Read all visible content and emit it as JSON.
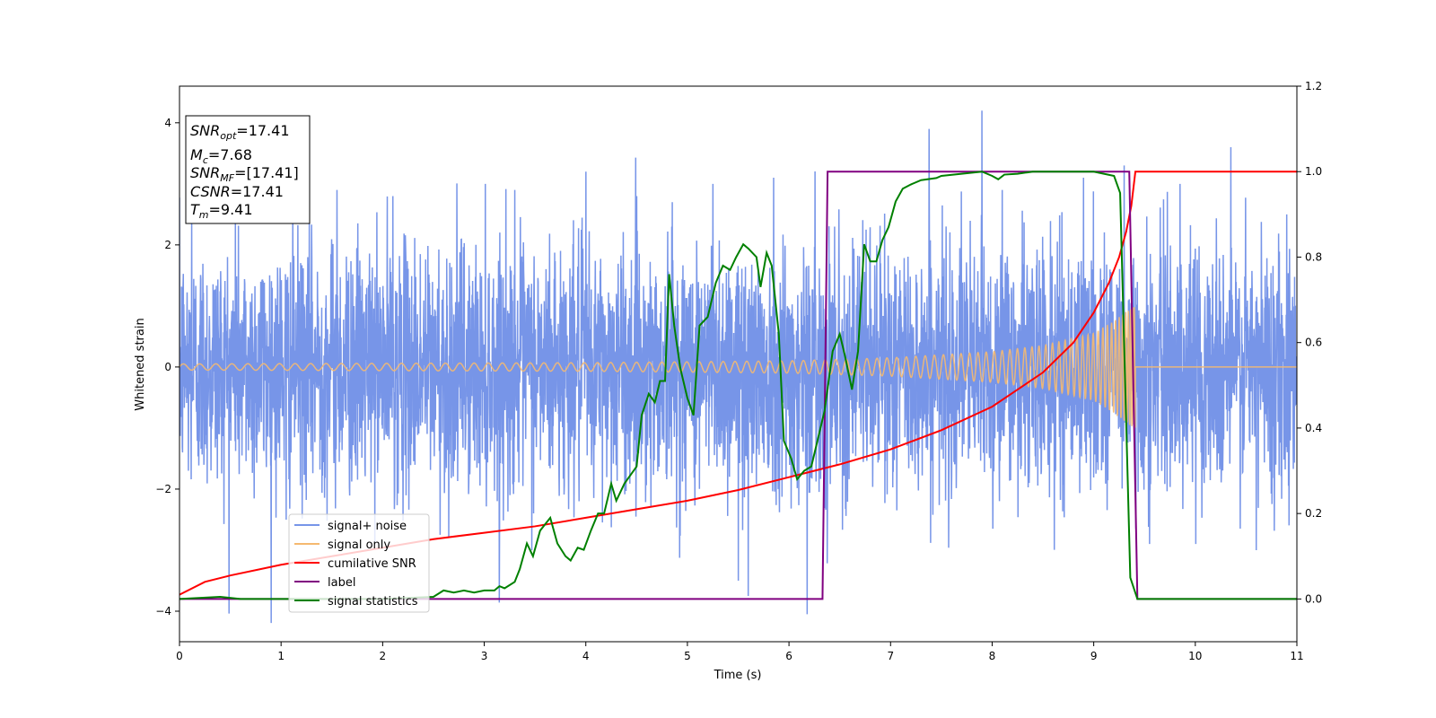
{
  "chart_data": {
    "type": "line",
    "xlabel": "Time (s)",
    "ylabel": "Whitened strain",
    "xlim": [
      0,
      11
    ],
    "ylim": [
      -4.5,
      4.6
    ],
    "y2lim": [
      -0.1,
      1.2
    ],
    "x_ticks": [
      "0",
      "1",
      "2",
      "3",
      "4",
      "5",
      "6",
      "7",
      "8",
      "9",
      "10",
      "11"
    ],
    "y_ticks": [
      "−4",
      "−2",
      "0",
      "2",
      "4"
    ],
    "y2_ticks": [
      "0.0",
      "0.2",
      "0.4",
      "0.6",
      "0.8",
      "1.0",
      "1.2"
    ],
    "grid": false,
    "legend_position": "lower-left",
    "info_box": {
      "snr_opt": {
        "base": "SNR",
        "sub": "opt",
        "value": "=17.41"
      },
      "mc": {
        "base": "M",
        "sub": "c",
        "value": "=7.68"
      },
      "snr_mf": {
        "base": "SNR",
        "sub": "MF",
        "value": "=[17.41]"
      },
      "csnr": {
        "base": "CSNR",
        "sub": "",
        "value": "=17.41"
      },
      "tm": {
        "base": "T",
        "sub": "m",
        "value": "=9.41"
      }
    },
    "series": [
      {
        "name": "signal+ noise",
        "axis": "left",
        "color": "#7795e8",
        "description": "noisy whitened strain, roughly gaussian noise with std ~1 and spikes reaching about 4.2 and -4.1",
        "spikes": [
          [
            0.12,
            2.4
          ],
          [
            0.55,
            2.6
          ],
          [
            1.05,
            -2.5
          ],
          [
            1.55,
            2.9
          ],
          [
            2.1,
            2.8
          ],
          [
            2.65,
            -2.8
          ],
          [
            3.15,
            -2.6
          ],
          [
            3.3,
            2.9
          ],
          [
            4.0,
            3.2
          ],
          [
            4.5,
            2.8
          ],
          [
            4.85,
            2.7
          ],
          [
            5.25,
            3.0
          ],
          [
            5.5,
            -3.5
          ],
          [
            5.6,
            -3.75
          ],
          [
            5.85,
            3.1
          ],
          [
            6.18,
            -4.05
          ],
          [
            6.45,
            2.3
          ],
          [
            7.38,
            3.9
          ],
          [
            7.9,
            4.2
          ],
          [
            8.1,
            2.9
          ],
          [
            8.9,
            3.1
          ],
          [
            9.3,
            3.3
          ],
          [
            9.55,
            -2.9
          ],
          [
            9.85,
            3.0
          ],
          [
            10.35,
            3.6
          ],
          [
            10.6,
            -3.0
          ],
          [
            10.9,
            2.5
          ]
        ]
      },
      {
        "name": "signal only",
        "axis": "left",
        "color": "#f5b970",
        "description": "chirp signal, amplitude growing from 0.05 to 1.0 until merger at 9.41 s, then zero",
        "envelope": [
          [
            0,
            0.05
          ],
          [
            4,
            0.07
          ],
          [
            6,
            0.1
          ],
          [
            7,
            0.15
          ],
          [
            8,
            0.25
          ],
          [
            8.5,
            0.35
          ],
          [
            9,
            0.55
          ],
          [
            9.2,
            0.75
          ],
          [
            9.35,
            0.95
          ],
          [
            9.41,
            1.0
          ]
        ]
      },
      {
        "name": "cumilative SNR",
        "axis": "right",
        "color": "#ff0000",
        "points": [
          [
            0,
            0.01
          ],
          [
            0.25,
            0.04
          ],
          [
            0.5,
            0.055
          ],
          [
            1,
            0.08
          ],
          [
            1.5,
            0.1
          ],
          [
            2,
            0.12
          ],
          [
            2.5,
            0.14
          ],
          [
            3,
            0.155
          ],
          [
            3.5,
            0.17
          ],
          [
            4,
            0.19
          ],
          [
            4.5,
            0.21
          ],
          [
            5,
            0.23
          ],
          [
            5.5,
            0.255
          ],
          [
            6,
            0.285
          ],
          [
            6.5,
            0.315
          ],
          [
            7,
            0.35
          ],
          [
            7.5,
            0.395
          ],
          [
            8,
            0.45
          ],
          [
            8.5,
            0.53
          ],
          [
            8.8,
            0.6
          ],
          [
            9,
            0.67
          ],
          [
            9.15,
            0.74
          ],
          [
            9.25,
            0.8
          ],
          [
            9.32,
            0.86
          ],
          [
            9.37,
            0.92
          ],
          [
            9.41,
            1.0
          ],
          [
            11,
            1.0
          ]
        ]
      },
      {
        "name": "label",
        "axis": "right",
        "color": "#800080",
        "points": [
          [
            0,
            0
          ],
          [
            6.33,
            0
          ],
          [
            6.38,
            1.0
          ],
          [
            9.35,
            1.0
          ],
          [
            9.43,
            0
          ],
          [
            11,
            0
          ]
        ]
      },
      {
        "name": "signal statistics",
        "axis": "right",
        "color": "#008000",
        "points": [
          [
            0,
            0.0
          ],
          [
            0.4,
            0.005
          ],
          [
            0.6,
            0.0
          ],
          [
            1.0,
            0.0
          ],
          [
            2.0,
            0.0
          ],
          [
            2.5,
            0.005
          ],
          [
            2.6,
            0.02
          ],
          [
            2.7,
            0.015
          ],
          [
            2.8,
            0.02
          ],
          [
            2.9,
            0.015
          ],
          [
            3.0,
            0.02
          ],
          [
            3.1,
            0.02
          ],
          [
            3.15,
            0.03
          ],
          [
            3.2,
            0.025
          ],
          [
            3.3,
            0.04
          ],
          [
            3.35,
            0.07
          ],
          [
            3.42,
            0.13
          ],
          [
            3.48,
            0.1
          ],
          [
            3.55,
            0.16
          ],
          [
            3.65,
            0.19
          ],
          [
            3.72,
            0.13
          ],
          [
            3.8,
            0.1
          ],
          [
            3.85,
            0.09
          ],
          [
            3.92,
            0.12
          ],
          [
            3.98,
            0.115
          ],
          [
            4.05,
            0.16
          ],
          [
            4.12,
            0.2
          ],
          [
            4.18,
            0.2
          ],
          [
            4.25,
            0.27
          ],
          [
            4.3,
            0.23
          ],
          [
            4.38,
            0.27
          ],
          [
            4.5,
            0.31
          ],
          [
            4.55,
            0.43
          ],
          [
            4.62,
            0.48
          ],
          [
            4.68,
            0.46
          ],
          [
            4.73,
            0.51
          ],
          [
            4.78,
            0.51
          ],
          [
            4.82,
            0.76
          ],
          [
            4.87,
            0.64
          ],
          [
            4.93,
            0.54
          ],
          [
            5.0,
            0.47
          ],
          [
            5.06,
            0.43
          ],
          [
            5.12,
            0.64
          ],
          [
            5.2,
            0.66
          ],
          [
            5.28,
            0.74
          ],
          [
            5.35,
            0.78
          ],
          [
            5.42,
            0.77
          ],
          [
            5.48,
            0.8
          ],
          [
            5.55,
            0.83
          ],
          [
            5.6,
            0.82
          ],
          [
            5.68,
            0.8
          ],
          [
            5.72,
            0.73
          ],
          [
            5.78,
            0.81
          ],
          [
            5.83,
            0.78
          ],
          [
            5.9,
            0.62
          ],
          [
            5.95,
            0.37
          ],
          [
            6.02,
            0.33
          ],
          [
            6.08,
            0.28
          ],
          [
            6.15,
            0.3
          ],
          [
            6.22,
            0.31
          ],
          [
            6.3,
            0.39
          ],
          [
            6.35,
            0.44
          ],
          [
            6.43,
            0.58
          ],
          [
            6.5,
            0.62
          ],
          [
            6.55,
            0.57
          ],
          [
            6.62,
            0.49
          ],
          [
            6.68,
            0.58
          ],
          [
            6.74,
            0.83
          ],
          [
            6.8,
            0.79
          ],
          [
            6.86,
            0.79
          ],
          [
            6.92,
            0.84
          ],
          [
            6.98,
            0.87
          ],
          [
            7.05,
            0.93
          ],
          [
            7.12,
            0.96
          ],
          [
            7.2,
            0.97
          ],
          [
            7.3,
            0.98
          ],
          [
            7.45,
            0.985
          ],
          [
            7.5,
            0.99
          ],
          [
            7.7,
            0.995
          ],
          [
            7.9,
            1.0
          ],
          [
            8.0,
            0.99
          ],
          [
            8.06,
            0.982
          ],
          [
            8.12,
            0.993
          ],
          [
            8.25,
            0.995
          ],
          [
            8.4,
            1.0
          ],
          [
            8.7,
            1.0
          ],
          [
            9.0,
            1.0
          ],
          [
            9.2,
            0.99
          ],
          [
            9.26,
            0.95
          ],
          [
            9.31,
            0.5
          ],
          [
            9.36,
            0.05
          ],
          [
            9.43,
            0.0
          ],
          [
            11,
            0.0
          ]
        ]
      }
    ]
  }
}
